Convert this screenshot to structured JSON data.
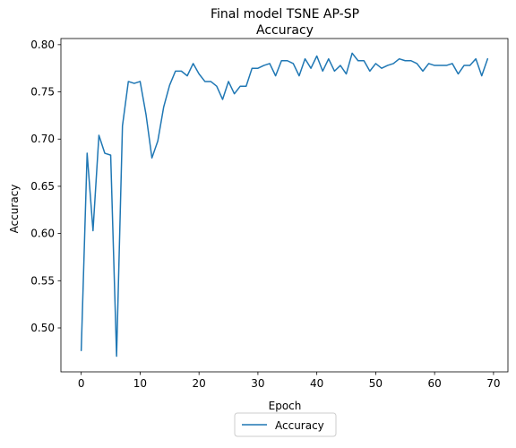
{
  "chart_data": {
    "type": "line",
    "title_line1": "Final model TSNE AP-SP",
    "title_line2": "Accuracy",
    "xlabel": "Epoch",
    "ylabel": "Accuracy",
    "xlim": [
      -3.45,
      72.45
    ],
    "ylim": [
      0.4535,
      0.8065
    ],
    "xticks": [
      0,
      10,
      20,
      30,
      40,
      50,
      60,
      70
    ],
    "yticks": [
      0.5,
      0.55,
      0.6,
      0.65,
      0.7,
      0.75,
      0.8
    ],
    "legend_position": "bottom-center",
    "series": [
      {
        "name": "Accuracy",
        "color": "#1f77b4",
        "x": [
          0,
          1,
          2,
          3,
          4,
          5,
          6,
          7,
          8,
          9,
          10,
          11,
          12,
          13,
          14,
          15,
          16,
          17,
          18,
          19,
          20,
          21,
          22,
          23,
          24,
          25,
          26,
          27,
          28,
          29,
          30,
          31,
          32,
          33,
          34,
          35,
          36,
          37,
          38,
          39,
          40,
          41,
          42,
          43,
          44,
          45,
          46,
          47,
          48,
          49,
          50,
          51,
          52,
          53,
          54,
          55,
          56,
          57,
          58,
          59,
          60,
          61,
          62,
          63,
          64,
          65,
          66,
          67,
          68,
          69
        ],
        "values": [
          0.476,
          0.685,
          0.603,
          0.704,
          0.685,
          0.683,
          0.47,
          0.714,
          0.761,
          0.759,
          0.761,
          0.726,
          0.68,
          0.698,
          0.734,
          0.757,
          0.772,
          0.772,
          0.767,
          0.78,
          0.769,
          0.761,
          0.761,
          0.756,
          0.742,
          0.761,
          0.748,
          0.756,
          0.756,
          0.775,
          0.775,
          0.778,
          0.78,
          0.767,
          0.783,
          0.783,
          0.78,
          0.767,
          0.785,
          0.775,
          0.788,
          0.772,
          0.785,
          0.772,
          0.778,
          0.769,
          0.791,
          0.783,
          0.783,
          0.772,
          0.78,
          0.775,
          0.778,
          0.78,
          0.785,
          0.783,
          0.783,
          0.78,
          0.772,
          0.78,
          0.778,
          0.778,
          0.778,
          0.78,
          0.769,
          0.778,
          0.778,
          0.785,
          0.767,
          0.785
        ]
      }
    ]
  }
}
